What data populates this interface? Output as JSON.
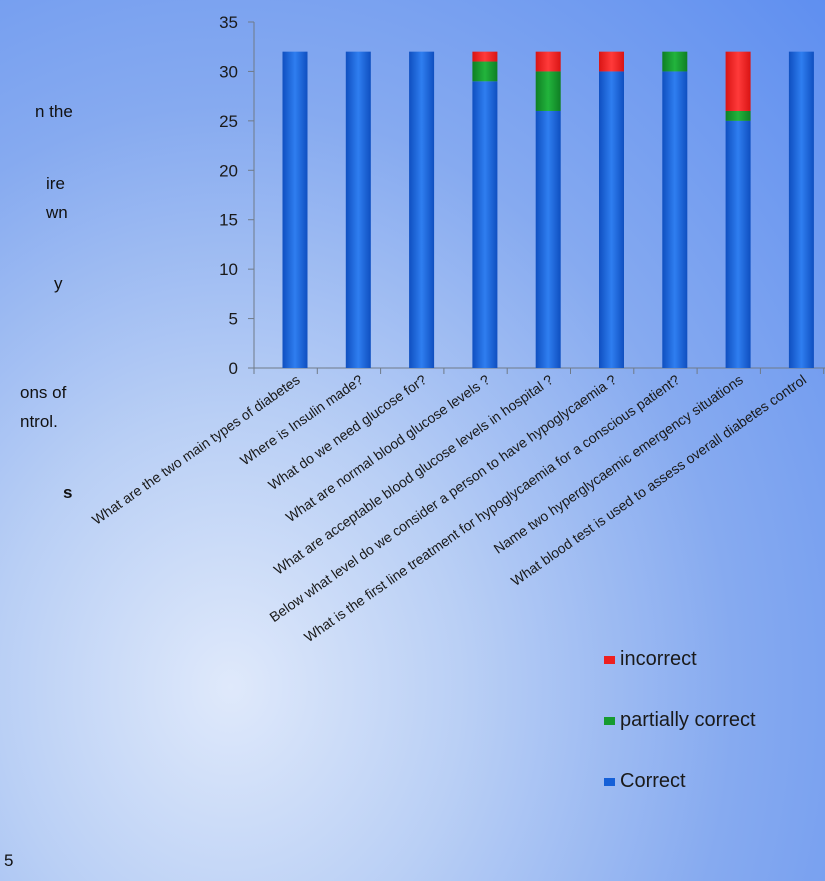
{
  "colors": {
    "correct": "#1560d8",
    "partially_correct": "#169b2f",
    "incorrect": "#ee1f1f"
  },
  "left_text": {
    "fragments": [
      "n the",
      "ire",
      "wn",
      "y",
      "ons of",
      "ntrol.",
      "s",
      "5"
    ]
  },
  "chart_data": {
    "type": "bar",
    "stacked": true,
    "title": "",
    "xlabel": "",
    "ylabel": "",
    "ylim": [
      0,
      35
    ],
    "yticks": [
      "0",
      "5",
      "10",
      "15",
      "20",
      "25",
      "30",
      "35"
    ],
    "categories": [
      "What are the two main types of diabetes",
      "Where is Insulin made?",
      "What do we need glucose for?",
      "What are normal blood glucose levels ?",
      "What are acceptable blood glucose levels in hospital ?",
      "Below what level do we consider a person to have hypoglycaemia ?",
      "What is the first line treatment for hypoglycaemia for a conscious patient?",
      "Name two hyperglycaemic emergency situations",
      "What blood test is used to assess overall diabetes control"
    ],
    "series": [
      {
        "name": "Correct",
        "values": [
          32,
          32,
          32,
          29,
          26,
          30,
          30,
          25,
          32
        ]
      },
      {
        "name": "partially correct",
        "values": [
          0,
          0,
          0,
          2,
          4,
          0,
          2,
          1,
          0
        ]
      },
      {
        "name": "incorrect",
        "values": [
          0,
          0,
          0,
          1,
          2,
          2,
          0,
          6,
          0
        ]
      }
    ],
    "legend": [
      "incorrect",
      "partially correct",
      "Correct"
    ],
    "legend_position": "bottom-right",
    "grid": false
  }
}
